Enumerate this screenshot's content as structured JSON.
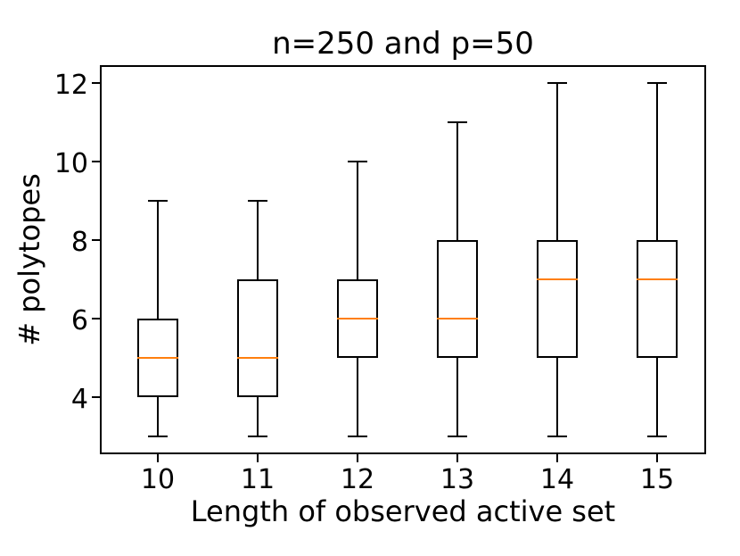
{
  "chart_data": {
    "type": "box",
    "title": "n=250 and p=50",
    "xlabel": "Length of observed active set",
    "ylabel": "# polytopes",
    "categories": [
      "10",
      "11",
      "12",
      "13",
      "14",
      "15"
    ],
    "boxes": [
      {
        "category": "10",
        "whisker_low": 3,
        "q1": 4,
        "median": 5,
        "q3": 6,
        "whisker_high": 9
      },
      {
        "category": "11",
        "whisker_low": 3,
        "q1": 4,
        "median": 5,
        "q3": 7,
        "whisker_high": 9
      },
      {
        "category": "12",
        "whisker_low": 3,
        "q1": 5,
        "median": 6,
        "q3": 7,
        "whisker_high": 10
      },
      {
        "category": "13",
        "whisker_low": 3,
        "q1": 5,
        "median": 6,
        "q3": 8,
        "whisker_high": 11
      },
      {
        "category": "14",
        "whisker_low": 3,
        "q1": 5,
        "median": 7,
        "q3": 8,
        "whisker_high": 12
      },
      {
        "category": "15",
        "whisker_low": 3,
        "q1": 5,
        "median": 7,
        "q3": 8,
        "whisker_high": 12
      }
    ],
    "yticks": [
      4,
      6,
      8,
      10,
      12
    ],
    "ylim": [
      2.55,
      12.45
    ],
    "grid": false,
    "legend": null,
    "box_color": "#000000",
    "median_color": "#ff7f0e",
    "background_color": "#ffffff"
  }
}
